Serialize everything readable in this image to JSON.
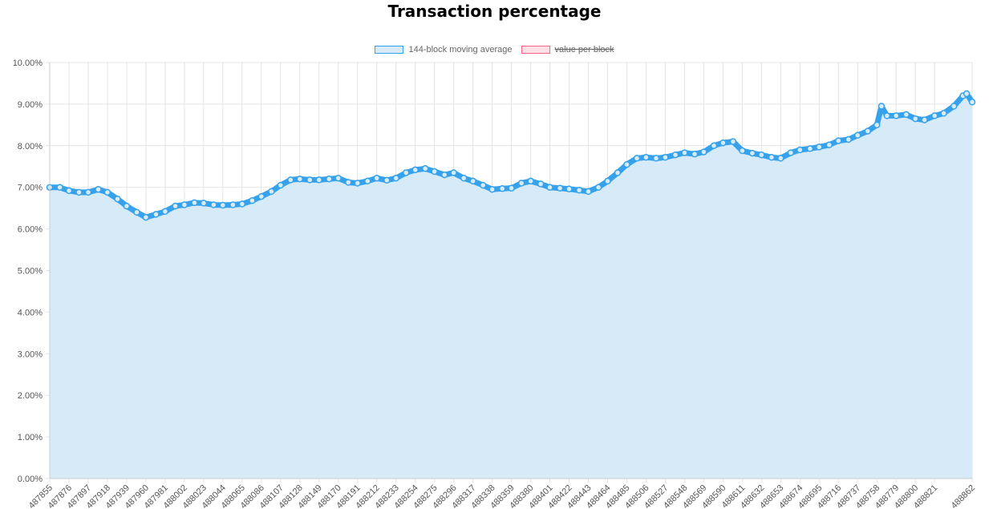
{
  "chart_data": {
    "type": "area",
    "title": "Transaction percentage",
    "legend": [
      {
        "name": "144-block moving average",
        "color": "#36a2eb",
        "fill": "#d6eaf8",
        "hidden": false
      },
      {
        "name": "value per block",
        "color": "#ff6384",
        "fill": "#ffe0e6",
        "hidden": true
      }
    ],
    "legend_position": "top-center",
    "ylim": [
      0,
      10
    ],
    "y_ticks": [
      "0.00%",
      "1.00%",
      "2.00%",
      "3.00%",
      "4.00%",
      "5.00%",
      "6.00%",
      "7.00%",
      "8.00%",
      "9.00%",
      "10.00%"
    ],
    "x_range": [
      487855,
      488862
    ],
    "x_ticks": [
      "487855",
      "487876",
      "487897",
      "487918",
      "487939",
      "487960",
      "487981",
      "488002",
      "488023",
      "488044",
      "488065",
      "488086",
      "488107",
      "488128",
      "488149",
      "488170",
      "488191",
      "488212",
      "488233",
      "488254",
      "488275",
      "488296",
      "488317",
      "488338",
      "488359",
      "488380",
      "488401",
      "488422",
      "488443",
      "488464",
      "488485",
      "488506",
      "488527",
      "488548",
      "488569",
      "488590",
      "488611",
      "488632",
      "488653",
      "488674",
      "488695",
      "488716",
      "488737",
      "488758",
      "488779",
      "488800",
      "488821",
      "488862"
    ],
    "grid": true,
    "series": [
      {
        "name": "144-block moving average",
        "x": [
          487855,
          487866,
          487876,
          487887,
          487897,
          487908,
          487918,
          487929,
          487939,
          487950,
          487960,
          487971,
          487981,
          487992,
          488002,
          488013,
          488023,
          488034,
          488044,
          488055,
          488065,
          488076,
          488086,
          488097,
          488107,
          488118,
          488128,
          488139,
          488149,
          488160,
          488170,
          488181,
          488191,
          488202,
          488212,
          488223,
          488233,
          488244,
          488254,
          488265,
          488275,
          488286,
          488296,
          488307,
          488317,
          488328,
          488338,
          488349,
          488359,
          488370,
          488380,
          488391,
          488401,
          488412,
          488422,
          488433,
          488443,
          488454,
          488464,
          488475,
          488485,
          488496,
          488506,
          488517,
          488527,
          488538,
          488548,
          488559,
          488569,
          488580,
          488590,
          488601,
          488611,
          488622,
          488632,
          488643,
          488653,
          488664,
          488674,
          488685,
          488695,
          488706,
          488716,
          488727,
          488737,
          488748,
          488758,
          488763,
          488769,
          488779,
          488790,
          488800,
          488810,
          488821,
          488831,
          488842,
          488852,
          488856,
          488862
        ],
        "values": [
          7.0,
          7.0,
          6.92,
          6.88,
          6.88,
          6.95,
          6.88,
          6.72,
          6.55,
          6.4,
          6.28,
          6.35,
          6.42,
          6.55,
          6.58,
          6.63,
          6.62,
          6.58,
          6.57,
          6.58,
          6.6,
          6.68,
          6.78,
          6.9,
          7.05,
          7.18,
          7.2,
          7.18,
          7.18,
          7.2,
          7.22,
          7.12,
          7.1,
          7.15,
          7.22,
          7.17,
          7.22,
          7.35,
          7.42,
          7.45,
          7.38,
          7.3,
          7.35,
          7.22,
          7.15,
          7.05,
          6.95,
          6.97,
          6.98,
          7.1,
          7.15,
          7.08,
          7.0,
          6.98,
          6.96,
          6.93,
          6.9,
          7.0,
          7.15,
          7.35,
          7.55,
          7.7,
          7.72,
          7.7,
          7.72,
          7.78,
          7.83,
          7.8,
          7.85,
          8.0,
          8.07,
          8.1,
          7.88,
          7.82,
          7.78,
          7.72,
          7.7,
          7.83,
          7.9,
          7.93,
          7.97,
          8.02,
          8.12,
          8.15,
          8.25,
          8.35,
          8.5,
          8.95,
          8.72,
          8.72,
          8.75,
          8.65,
          8.62,
          8.72,
          8.78,
          8.95,
          9.2,
          9.25,
          9.05
        ]
      }
    ]
  }
}
